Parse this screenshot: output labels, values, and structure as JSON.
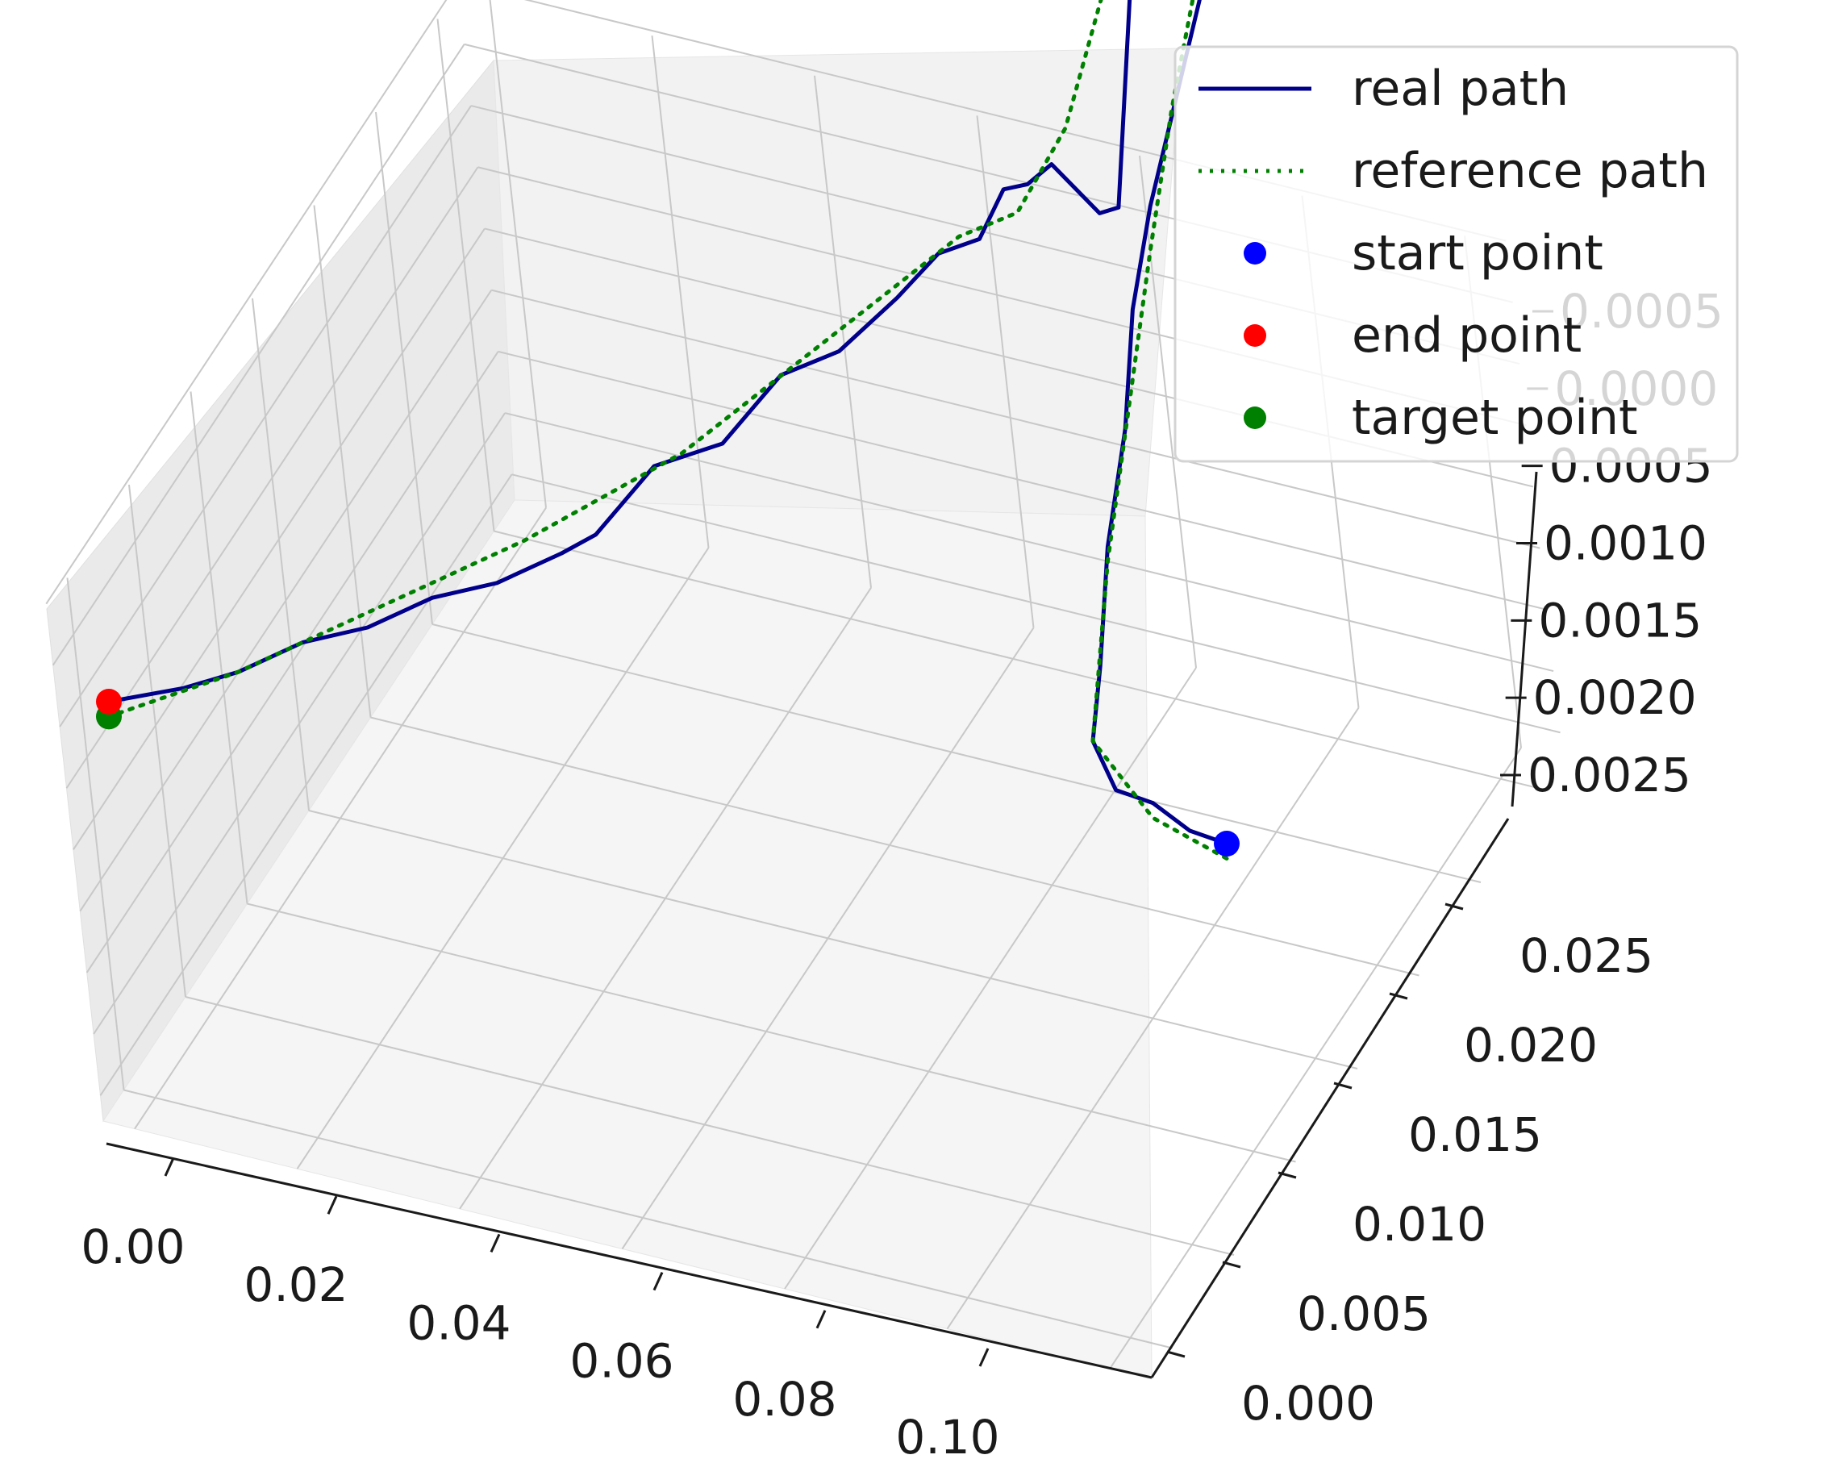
{
  "chart_data": {
    "type": "line",
    "projection": "3d",
    "title": "",
    "xlabel": "",
    "ylabel": "",
    "zlabel": "",
    "grid": true,
    "legend_position": "top-right",
    "axes": {
      "x": {
        "lim": [
          -0.005,
          0.11
        ],
        "ticks": [
          0.0,
          0.02,
          0.04,
          0.06,
          0.08,
          0.1
        ],
        "tick_labels": [
          "0.00",
          "0.02",
          "0.04",
          "0.06",
          "0.08",
          "0.10"
        ]
      },
      "y": {
        "lim": [
          -0.001,
          0.029
        ],
        "ticks": [
          0.0,
          0.005,
          0.01,
          0.015,
          0.02,
          0.025
        ],
        "tick_labels": [
          "0.000",
          "0.005",
          "0.010",
          "0.015",
          "0.020",
          "0.025"
        ]
      },
      "z": {
        "lim": [
          -0.0028,
          0.00065
        ],
        "ticks": [
          0.0005,
          0.0,
          -0.0005,
          -0.001,
          -0.0015,
          -0.002,
          -0.0025
        ],
        "tick_labels": [
          "0.0005",
          "0.0000",
          "0.0005",
          "0.0010",
          "0.0015",
          "0.0020",
          "0.0025"
        ]
      }
    },
    "colors": {
      "real": "#00008b",
      "reference": "#008000",
      "start": "#0000ff",
      "end": "#ff0000",
      "target": "#008000"
    },
    "legend": [
      "real path",
      "reference path",
      "start point",
      "end point",
      "target point"
    ],
    "series": [
      {
        "name": "real path",
        "style": "solid",
        "x": [
          0.11,
          0.105,
          0.1,
          0.095,
          0.09,
          0.088,
          0.086,
          0.085,
          0.083,
          0.082,
          0.081,
          0.08,
          0.079,
          0.078,
          0.076,
          0.074,
          0.072,
          0.07,
          0.068,
          0.066,
          0.064,
          0.0625,
          0.0625,
          0.062,
          0.061,
          0.06,
          0.059,
          0.058,
          0.057,
          0.055,
          0.053,
          0.05,
          0.047,
          0.044,
          0.04,
          0.037,
          0.035,
          0.03,
          0.025,
          0.02,
          0.015,
          0.01,
          0.006,
          0.003,
          0.0
        ],
        "y": [
          0.0,
          0.001,
          0.002,
          0.003,
          0.005,
          0.007,
          0.009,
          0.011,
          0.013,
          0.015,
          0.017,
          0.019,
          0.021,
          0.022,
          0.023,
          0.024,
          0.025,
          0.026,
          0.027,
          0.028,
          0.0285,
          0.0288,
          0.027,
          0.026,
          0.025,
          0.024,
          0.023,
          0.022,
          0.021,
          0.0195,
          0.018,
          0.016,
          0.014,
          0.012,
          0.01,
          0.008,
          0.007,
          0.006,
          0.005,
          0.004,
          0.003,
          0.002,
          0.001,
          0.0005,
          0.0
        ],
        "z": [
          -0.0025,
          -0.0026,
          -0.0026,
          -0.0027,
          -0.0027,
          -0.0025,
          -0.002,
          -0.0015,
          -0.001,
          -0.0006,
          -0.0004,
          -0.0002,
          0.0,
          0.0001,
          0.0002,
          0.0003,
          0.0003,
          0.0003,
          0.0004,
          0.0004,
          0.0004,
          0.0004,
          -0.0025,
          -0.0024,
          -0.0021,
          -0.0018,
          -0.0018,
          -0.0017,
          -0.0019,
          -0.0018,
          -0.0019,
          -0.002,
          -0.0019,
          -0.0021,
          -0.002,
          -0.0022,
          -0.0022,
          -0.0023,
          -0.0023,
          -0.0024,
          -0.0024,
          -0.0025,
          -0.0025,
          -0.0025,
          -0.0025
        ]
      },
      {
        "name": "reference path",
        "style": "dotted",
        "x": [
          0.11,
          0.1,
          0.09,
          0.086,
          0.084,
          0.082,
          0.08,
          0.078,
          0.075,
          0.07,
          0.066,
          0.064,
          0.062,
          0.06,
          0.058,
          0.055,
          0.05,
          0.045,
          0.04,
          0.03,
          0.02,
          0.01,
          0.0
        ],
        "y": [
          0.0,
          0.002,
          0.005,
          0.009,
          0.012,
          0.015,
          0.018,
          0.021,
          0.023,
          0.025,
          0.027,
          0.0285,
          0.027,
          0.025,
          0.023,
          0.021,
          0.018,
          0.015,
          0.012,
          0.008,
          0.005,
          0.002,
          0.0
        ],
        "z": [
          -0.0026,
          -0.0027,
          -0.0027,
          -0.0021,
          -0.0015,
          -0.0009,
          -0.0004,
          -0.0001,
          0.0001,
          0.0002,
          0.0003,
          0.0004,
          -0.0008,
          -0.0017,
          -0.002,
          -0.0019,
          -0.002,
          -0.0021,
          -0.0022,
          -0.0023,
          -0.0024,
          -0.0025,
          -0.0026
        ]
      }
    ],
    "points": [
      {
        "name": "start point",
        "x": 0.11,
        "y": 0.0,
        "z": -0.0025
      },
      {
        "name": "end point",
        "x": 0.0,
        "y": 0.0,
        "z": -0.0025
      },
      {
        "name": "target point",
        "x": 0.0,
        "y": 0.0,
        "z": -0.0026
      }
    ]
  }
}
